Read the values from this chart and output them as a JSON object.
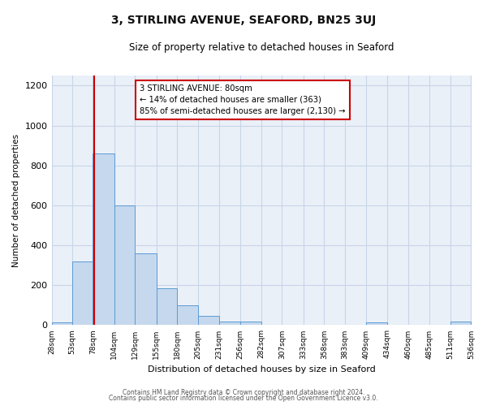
{
  "title": "3, STIRLING AVENUE, SEAFORD, BN25 3UJ",
  "subtitle": "Size of property relative to detached houses in Seaford",
  "xlabel": "Distribution of detached houses by size in Seaford",
  "ylabel": "Number of detached properties",
  "bin_edges": [
    28,
    53,
    78,
    104,
    129,
    155,
    180,
    205,
    231,
    256,
    282,
    307,
    333,
    358,
    383,
    409,
    434,
    460,
    485,
    511,
    536
  ],
  "bar_heights": [
    15,
    320,
    860,
    600,
    360,
    185,
    100,
    45,
    20,
    20,
    0,
    0,
    0,
    0,
    0,
    15,
    0,
    0,
    0,
    20
  ],
  "bar_color": "#c5d8ed",
  "bar_edge_color": "#5b9bd5",
  "vline_x": 80,
  "vline_color": "#cc0000",
  "ylim": [
    0,
    1250
  ],
  "yticks": [
    0,
    200,
    400,
    600,
    800,
    1000,
    1200
  ],
  "annotation_title": "3 STIRLING AVENUE: 80sqm",
  "annotation_line2": "← 14% of detached houses are smaller (363)",
  "annotation_line3": "85% of semi-detached houses are larger (2,130) →",
  "annotation_box_facecolor": "#ffffff",
  "annotation_box_edgecolor": "#cc0000",
  "plot_bg_color": "#eaf0f8",
  "fig_bg_color": "#ffffff",
  "grid_color": "#c8d4e8",
  "footer_line1": "Contains HM Land Registry data © Crown copyright and database right 2024.",
  "footer_line2": "Contains public sector information licensed under the Open Government Licence v3.0."
}
